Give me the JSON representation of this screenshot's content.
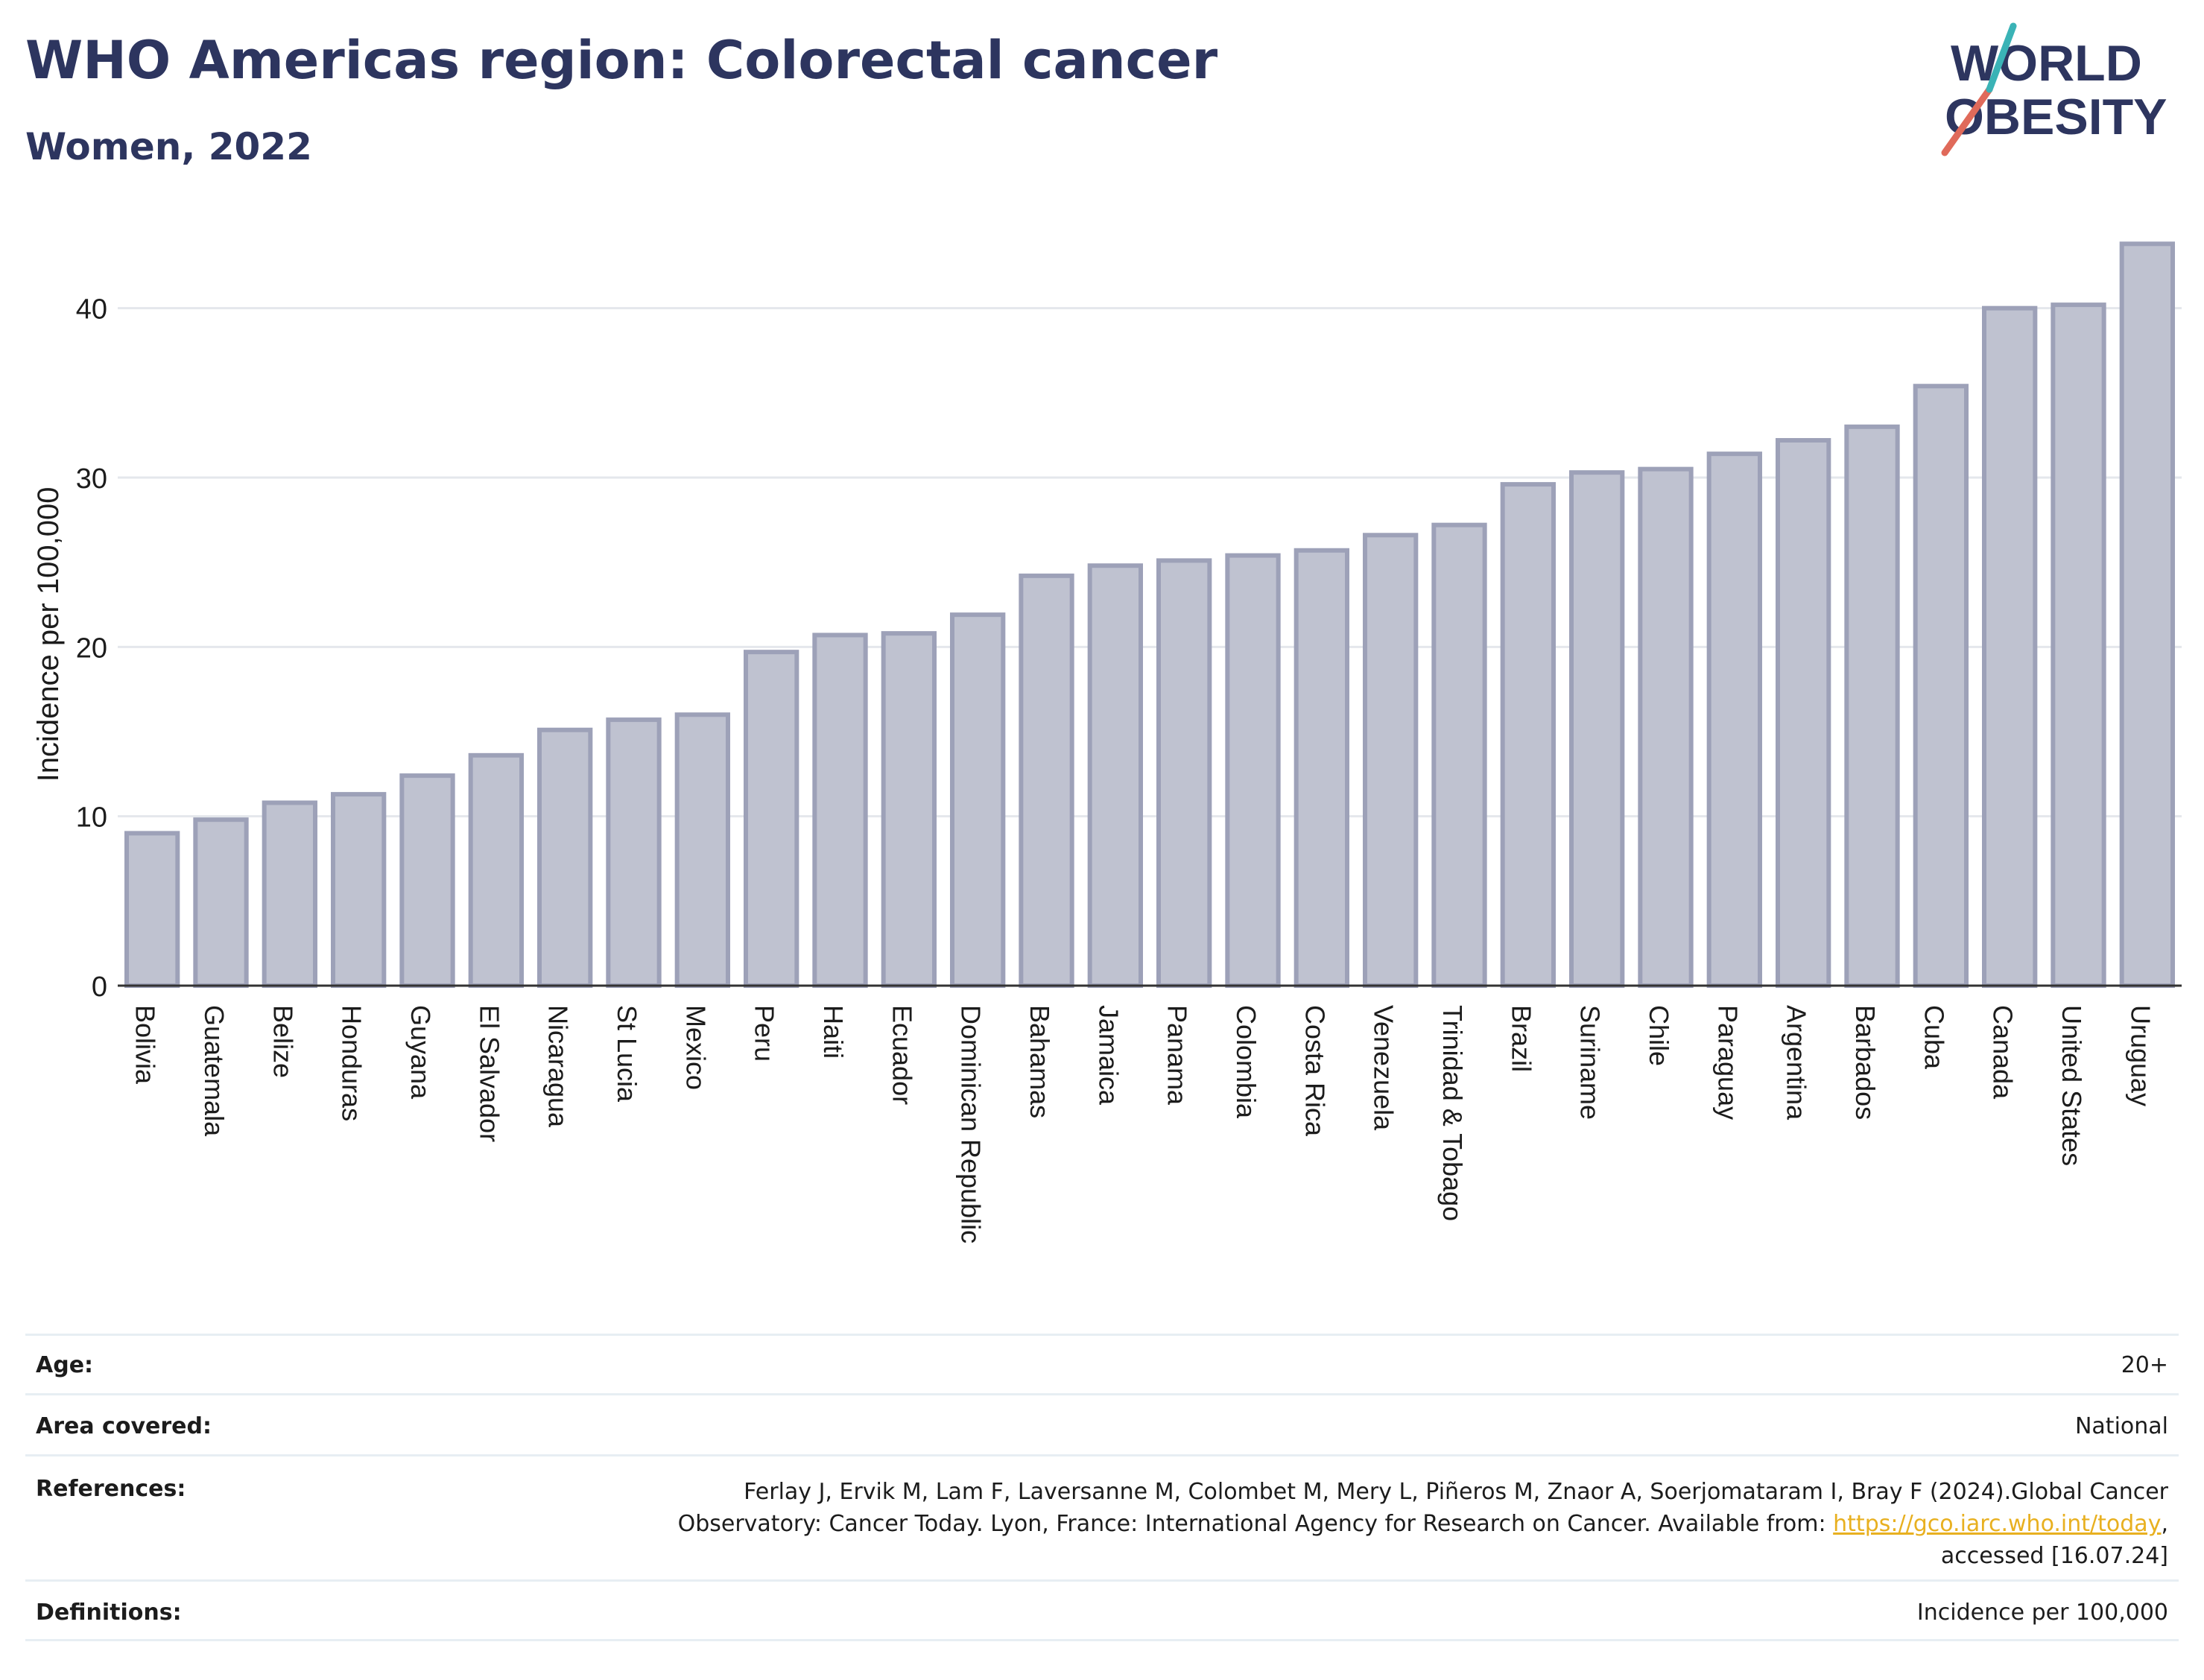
{
  "header": {
    "title": "WHO Americas region: Colorectal cancer",
    "subtitle": "Women, 2022"
  },
  "logo": {
    "line1": "WORLD",
    "line2": "OBESITY",
    "colors": [
      "#2d355f",
      "#e06a5a",
      "#3ab3b6"
    ]
  },
  "chart_data": {
    "type": "bar",
    "title": "WHO Americas region: Colorectal cancer",
    "subtitle": "Women, 2022",
    "xlabel": "",
    "ylabel": "Incidence per 100,000",
    "ylim": [
      0,
      45
    ],
    "yticks": [
      0,
      10,
      20,
      30,
      40
    ],
    "grid": true,
    "bar_color": "#bfc2d0",
    "bar_border": "#9da1b8",
    "categories": [
      "Bolivia",
      "Guatemala",
      "Belize",
      "Honduras",
      "Guyana",
      "El Salvador",
      "Nicaragua",
      "St Lucia",
      "Mexico",
      "Peru",
      "Haiti",
      "Ecuador",
      "Dominican Republic",
      "Bahamas",
      "Jamaica",
      "Panama",
      "Colombia",
      "Costa Rica",
      "Venezuela",
      "Trinidad & Tobago",
      "Brazil",
      "Suriname",
      "Chile",
      "Paraguay",
      "Argentina",
      "Barbados",
      "Cuba",
      "Canada",
      "United States",
      "Uruguay"
    ],
    "values": [
      9.0,
      9.8,
      10.8,
      11.3,
      12.4,
      13.6,
      15.1,
      15.7,
      16.0,
      19.7,
      20.7,
      20.8,
      21.9,
      24.2,
      24.8,
      25.1,
      25.4,
      25.7,
      26.6,
      27.2,
      29.6,
      30.3,
      30.5,
      31.4,
      32.2,
      33.0,
      35.4,
      40.0,
      40.2,
      43.8
    ]
  },
  "meta": {
    "age_label": "Age:",
    "age_value": "20+",
    "area_label": "Area covered:",
    "area_value": "National",
    "refs_label": "References:",
    "refs_line1": "Ferlay J, Ervik M, Lam F, Laversanne M, Colombet M, Mery L, Piñeros M, Znaor A, Soerjomataram I, Bray F (2024).Global Cancer",
    "refs_line2_pre": "Observatory: Cancer Today. Lyon, France: International Agency for Research on Cancer. Available from: ",
    "refs_link": "https://gco.iarc.who.int/today",
    "refs_line2_post": ",",
    "refs_line3": "accessed [16.07.24]",
    "defs_label": "Definitions:",
    "defs_value": "Incidence per 100,000"
  }
}
